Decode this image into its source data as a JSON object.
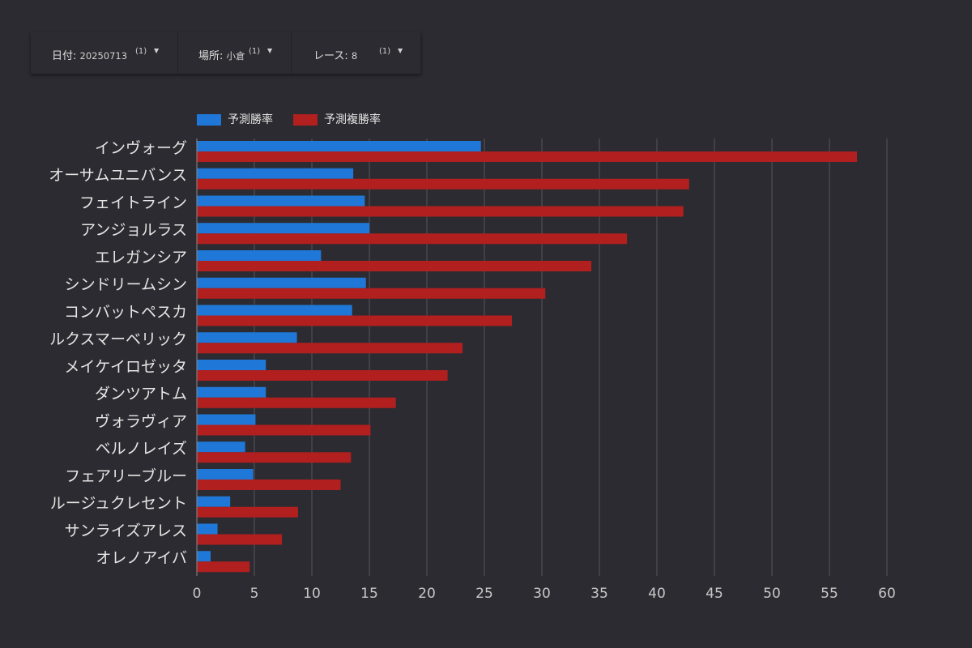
{
  "filters": [
    {
      "label": "日付",
      "value": "20250713",
      "count": "(1)"
    },
    {
      "label": "場所",
      "value": "小倉",
      "count": "(1)"
    },
    {
      "label": "レース",
      "value": "8",
      "count": "(1)"
    }
  ],
  "colors": {
    "win": "#1f78d8",
    "place": "#b21f1f",
    "background": "#2c2b31",
    "grid": "#55545b"
  },
  "chart_data": {
    "type": "bar",
    "orientation": "horizontal",
    "categories": [
      "インヴォーグ",
      "オーサムユニバンス",
      "フェイトライン",
      "アンジョルラス",
      "エレガンシア",
      "シンドリームシン",
      "コンバットペスカ",
      "ルクスマーベリック",
      "メイケイロゼッタ",
      "ダンツアトム",
      "ヴォラヴィア",
      "ベルノレイズ",
      "フェアリーブルー",
      "ルージュクレセント",
      "サンライズアレス",
      "オレノアイバ"
    ],
    "series": [
      {
        "name": "予測勝率",
        "color": "#1f78d8",
        "values": [
          24.7,
          13.6,
          14.6,
          15.0,
          10.8,
          14.7,
          13.5,
          8.7,
          6.0,
          6.0,
          5.1,
          4.2,
          4.9,
          2.9,
          1.8,
          1.2
        ]
      },
      {
        "name": "予測複勝率",
        "color": "#b21f1f",
        "values": [
          57.4,
          42.8,
          42.3,
          37.4,
          34.3,
          30.3,
          27.4,
          23.1,
          21.8,
          17.3,
          15.1,
          13.4,
          12.5,
          8.8,
          7.4,
          4.6
        ]
      }
    ],
    "xlim": [
      0,
      60
    ],
    "xticks": [
      "0",
      "5",
      "10",
      "15",
      "20",
      "25",
      "30",
      "35",
      "40",
      "45",
      "50",
      "55",
      "60"
    ],
    "legend": "top-left",
    "grid": true
  }
}
